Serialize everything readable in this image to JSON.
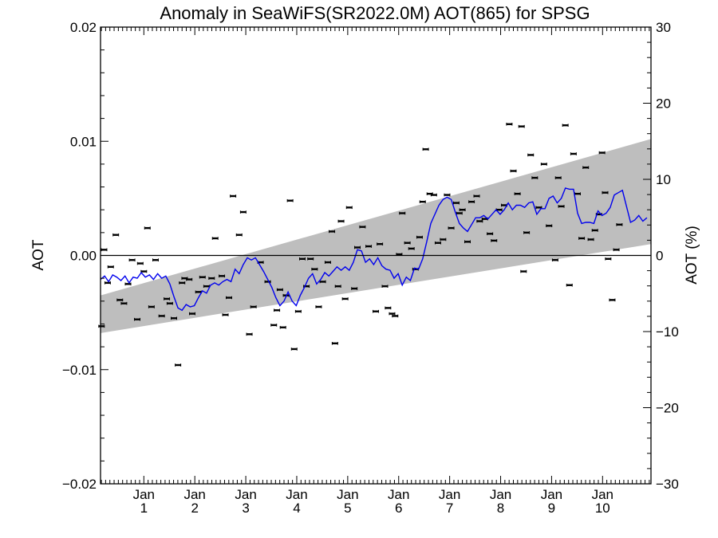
{
  "chart_data": {
    "type": "scatter",
    "title": "Anomaly in SeaWiFS(SR2022.0M) AOT(865) for SPSG",
    "ylabel": "AOT",
    "y2label": "AOT (%)",
    "xlabel": "",
    "xlim": [
      0.0,
      10.8
    ],
    "ylim": [
      -0.02,
      0.02
    ],
    "y2lim": [
      -30,
      30
    ],
    "grid": false,
    "legend": "none",
    "x_ticks": [
      {
        "pos": 0.85,
        "line1": "Jan",
        "line2": "1"
      },
      {
        "pos": 1.85,
        "line1": "Jan",
        "line2": "2"
      },
      {
        "pos": 2.85,
        "line1": "Jan",
        "line2": "3"
      },
      {
        "pos": 3.85,
        "line1": "Jan",
        "line2": "4"
      },
      {
        "pos": 4.85,
        "line1": "Jan",
        "line2": "5"
      },
      {
        "pos": 5.85,
        "line1": "Jan",
        "line2": "6"
      },
      {
        "pos": 6.85,
        "line1": "Jan",
        "line2": "7"
      },
      {
        "pos": 7.85,
        "line1": "Jan",
        "line2": "8"
      },
      {
        "pos": 8.85,
        "line1": "Jan",
        "line2": "9"
      },
      {
        "pos": 9.85,
        "line1": "Jan",
        "line2": "10"
      }
    ],
    "y_ticks": [
      {
        "value": -0.02,
        "label": "−0.02"
      },
      {
        "value": -0.01,
        "label": "−0.01"
      },
      {
        "value": 0.0,
        "label": "0.00"
      },
      {
        "value": 0.01,
        "label": "0.01"
      },
      {
        "value": 0.02,
        "label": "0.02"
      }
    ],
    "y2_ticks": [
      {
        "value": -30,
        "label": "−30"
      },
      {
        "value": -20,
        "label": "−20"
      },
      {
        "value": -10,
        "label": "−10"
      },
      {
        "value": 0,
        "label": "0"
      },
      {
        "value": 10,
        "label": "10"
      },
      {
        "value": 20,
        "label": "20"
      },
      {
        "value": 30,
        "label": "30"
      }
    ],
    "colors": {
      "band": "#bebebe",
      "line": "#0000ee",
      "points": "#000000",
      "zero_line": "#000000"
    },
    "band": {
      "upper": [
        [
          0.0,
          -0.0035
        ],
        [
          10.8,
          0.0102
        ]
      ],
      "lower": [
        [
          0.0,
          -0.0068
        ],
        [
          10.8,
          0.001
        ]
      ]
    },
    "smoothed_line": [
      [
        0.0,
        -0.0021
      ],
      [
        0.08,
        -0.0018
      ],
      [
        0.16,
        -0.0023
      ],
      [
        0.24,
        -0.0017
      ],
      [
        0.32,
        -0.0019
      ],
      [
        0.4,
        -0.0022
      ],
      [
        0.48,
        -0.0018
      ],
      [
        0.56,
        -0.0024
      ],
      [
        0.64,
        -0.0019
      ],
      [
        0.72,
        -0.002
      ],
      [
        0.8,
        -0.0015
      ],
      [
        0.88,
        -0.0019
      ],
      [
        0.96,
        -0.0017
      ],
      [
        1.04,
        -0.0021
      ],
      [
        1.12,
        -0.0016
      ],
      [
        1.2,
        -0.002
      ],
      [
        1.28,
        -0.0018
      ],
      [
        1.36,
        -0.0025
      ],
      [
        1.44,
        -0.0036
      ],
      [
        1.52,
        -0.0046
      ],
      [
        1.6,
        -0.0048
      ],
      [
        1.68,
        -0.0043
      ],
      [
        1.76,
        -0.0045
      ],
      [
        1.84,
        -0.0044
      ],
      [
        1.92,
        -0.0037
      ],
      [
        2.0,
        -0.0031
      ],
      [
        2.08,
        -0.0033
      ],
      [
        2.16,
        -0.0026
      ],
      [
        2.24,
        -0.0024
      ],
      [
        2.32,
        -0.0026
      ],
      [
        2.4,
        -0.0023
      ],
      [
        2.48,
        -0.0021
      ],
      [
        2.56,
        -0.0023
      ],
      [
        2.64,
        -0.0012
      ],
      [
        2.72,
        -0.0016
      ],
      [
        2.8,
        -0.0008
      ],
      [
        2.88,
        -0.0002
      ],
      [
        2.96,
        -0.0004
      ],
      [
        3.04,
        -0.0002
      ],
      [
        3.12,
        -0.0008
      ],
      [
        3.2,
        -0.0014
      ],
      [
        3.28,
        -0.0021
      ],
      [
        3.36,
        -0.0028
      ],
      [
        3.44,
        -0.0037
      ],
      [
        3.52,
        -0.0044
      ],
      [
        3.6,
        -0.004
      ],
      [
        3.68,
        -0.0032
      ],
      [
        3.76,
        -0.004
      ],
      [
        3.84,
        -0.0044
      ],
      [
        3.92,
        -0.0035
      ],
      [
        4.0,
        -0.0028
      ],
      [
        4.08,
        -0.002
      ],
      [
        4.16,
        -0.0016
      ],
      [
        4.24,
        -0.0025
      ],
      [
        4.32,
        -0.0021
      ],
      [
        4.4,
        -0.0015
      ],
      [
        4.48,
        -0.0018
      ],
      [
        4.56,
        -0.0014
      ],
      [
        4.64,
        -0.001
      ],
      [
        4.72,
        -0.0013
      ],
      [
        4.8,
        -0.001
      ],
      [
        4.88,
        -0.0013
      ],
      [
        4.96,
        -0.0006
      ],
      [
        5.04,
        0.0005
      ],
      [
        5.12,
        0.0004
      ],
      [
        5.2,
        -0.0006
      ],
      [
        5.28,
        -0.0003
      ],
      [
        5.36,
        -0.0008
      ],
      [
        5.44,
        -0.0002
      ],
      [
        5.52,
        -0.0009
      ],
      [
        5.6,
        -0.0012
      ],
      [
        5.68,
        -0.0013
      ],
      [
        5.76,
        -0.002
      ],
      [
        5.84,
        -0.0016
      ],
      [
        5.92,
        -0.0026
      ],
      [
        6.0,
        -0.0019
      ],
      [
        6.08,
        -0.0022
      ],
      [
        6.16,
        -0.0011
      ],
      [
        6.24,
        -0.0012
      ],
      [
        6.32,
        -0.0003
      ],
      [
        6.4,
        0.0012
      ],
      [
        6.48,
        0.0028
      ],
      [
        6.56,
        0.0036
      ],
      [
        6.64,
        0.0044
      ],
      [
        6.72,
        0.0049
      ],
      [
        6.8,
        0.0051
      ],
      [
        6.88,
        0.0049
      ],
      [
        6.96,
        0.0038
      ],
      [
        7.04,
        0.0028
      ],
      [
        7.12,
        0.0024
      ],
      [
        7.2,
        0.0021
      ],
      [
        7.28,
        0.0027
      ],
      [
        7.36,
        0.0033
      ],
      [
        7.44,
        0.0033
      ],
      [
        7.52,
        0.0035
      ],
      [
        7.6,
        0.0032
      ],
      [
        7.68,
        0.0036
      ],
      [
        7.76,
        0.004
      ],
      [
        7.84,
        0.0036
      ],
      [
        7.92,
        0.004
      ],
      [
        8.0,
        0.0046
      ],
      [
        8.08,
        0.004
      ],
      [
        8.16,
        0.0044
      ],
      [
        8.24,
        0.0044
      ],
      [
        8.32,
        0.0042
      ],
      [
        8.4,
        0.0046
      ],
      [
        8.48,
        0.0047
      ],
      [
        8.56,
        0.0036
      ],
      [
        8.64,
        0.0041
      ],
      [
        8.72,
        0.0041
      ],
      [
        8.8,
        0.005
      ],
      [
        8.88,
        0.0052
      ],
      [
        8.96,
        0.0046
      ],
      [
        9.04,
        0.005
      ],
      [
        9.12,
        0.0059
      ],
      [
        9.2,
        0.0058
      ],
      [
        9.28,
        0.0058
      ],
      [
        9.36,
        0.0037
      ],
      [
        9.44,
        0.0028
      ],
      [
        9.52,
        0.0029
      ],
      [
        9.6,
        0.0029
      ],
      [
        9.68,
        0.0028
      ],
      [
        9.76,
        0.0039
      ],
      [
        9.84,
        0.0035
      ],
      [
        9.92,
        0.0037
      ],
      [
        10.0,
        0.0042
      ],
      [
        10.08,
        0.0053
      ],
      [
        10.16,
        0.0055
      ],
      [
        10.24,
        0.0057
      ],
      [
        10.32,
        0.0043
      ],
      [
        10.4,
        0.0029
      ],
      [
        10.48,
        0.0031
      ],
      [
        10.56,
        0.0035
      ],
      [
        10.64,
        0.003
      ],
      [
        10.72,
        0.0033
      ]
    ],
    "monthly_points": [
      [
        0.02,
        -0.0062
      ],
      [
        0.07,
        0.0005
      ],
      [
        0.14,
        -0.0024
      ],
      [
        0.2,
        -0.001
      ],
      [
        0.3,
        0.0018
      ],
      [
        0.38,
        -0.0039
      ],
      [
        0.46,
        -0.0042
      ],
      [
        0.54,
        -0.0025
      ],
      [
        0.62,
        -0.0004
      ],
      [
        0.72,
        -0.0056
      ],
      [
        0.78,
        -0.0007
      ],
      [
        0.85,
        -0.0014
      ],
      [
        0.92,
        0.0024
      ],
      [
        1.0,
        -0.0045
      ],
      [
        1.08,
        -0.0004
      ],
      [
        1.2,
        -0.0053
      ],
      [
        1.3,
        -0.0038
      ],
      [
        1.36,
        -0.0042
      ],
      [
        1.44,
        -0.0055
      ],
      [
        1.52,
        -0.0096
      ],
      [
        1.6,
        -0.0024
      ],
      [
        1.65,
        -0.002
      ],
      [
        1.74,
        -0.0021
      ],
      [
        1.8,
        -0.0051
      ],
      [
        1.92,
        -0.0032
      ],
      [
        2.0,
        -0.0019
      ],
      [
        2.08,
        -0.0027
      ],
      [
        2.18,
        -0.002
      ],
      [
        2.25,
        0.0015
      ],
      [
        2.38,
        -0.0018
      ],
      [
        2.45,
        -0.0052
      ],
      [
        2.52,
        -0.0037
      ],
      [
        2.6,
        0.0052
      ],
      [
        2.72,
        0.0018
      ],
      [
        2.8,
        0.0038
      ],
      [
        2.92,
        -0.0069
      ],
      [
        3.0,
        -0.0045
      ],
      [
        3.14,
        -0.0006
      ],
      [
        3.28,
        -0.0023
      ],
      [
        3.4,
        -0.0061
      ],
      [
        3.46,
        -0.0048
      ],
      [
        3.52,
        -0.003
      ],
      [
        3.58,
        -0.0063
      ],
      [
        3.64,
        -0.0035
      ],
      [
        3.72,
        0.0048
      ],
      [
        3.8,
        -0.0082
      ],
      [
        3.88,
        -0.0049
      ],
      [
        3.96,
        -0.0003
      ],
      [
        4.04,
        -0.0027
      ],
      [
        4.12,
        -0.0003
      ],
      [
        4.2,
        -0.0012
      ],
      [
        4.28,
        -0.0045
      ],
      [
        4.36,
        -0.0023
      ],
      [
        4.46,
        -0.0006
      ],
      [
        4.54,
        0.0021
      ],
      [
        4.6,
        -0.0077
      ],
      [
        4.66,
        -0.0027
      ],
      [
        4.72,
        0.003
      ],
      [
        4.8,
        -0.0038
      ],
      [
        4.88,
        0.0042
      ],
      [
        4.98,
        -0.0029
      ],
      [
        5.04,
        0.0007
      ],
      [
        5.14,
        0.0025
      ],
      [
        5.26,
        0.0008
      ],
      [
        5.4,
        -0.0049
      ],
      [
        5.48,
        0.001
      ],
      [
        5.58,
        -0.0027
      ],
      [
        5.64,
        -0.0046
      ],
      [
        5.72,
        -0.0051
      ],
      [
        5.78,
        -0.0053
      ],
      [
        5.86,
        0.0001
      ],
      [
        5.92,
        0.0037
      ],
      [
        6.02,
        0.0011
      ],
      [
        6.1,
        0.0006
      ],
      [
        6.18,
        -0.0012
      ],
      [
        6.26,
        0.0016
      ],
      [
        6.32,
        0.0047
      ],
      [
        6.38,
        0.0093
      ],
      [
        6.46,
        0.0054
      ],
      [
        6.54,
        0.0053
      ],
      [
        6.62,
        0.0011
      ],
      [
        6.72,
        0.0014
      ],
      [
        6.8,
        0.0053
      ],
      [
        6.88,
        0.0024
      ],
      [
        6.98,
        0.0046
      ],
      [
        7.04,
        0.0037
      ],
      [
        7.1,
        0.004
      ],
      [
        7.2,
        0.0012
      ],
      [
        7.28,
        0.0047
      ],
      [
        7.38,
        0.0052
      ],
      [
        7.44,
        0.003
      ],
      [
        7.54,
        0.0032
      ],
      [
        7.64,
        0.0019
      ],
      [
        7.72,
        0.0013
      ],
      [
        7.82,
        0.004
      ],
      [
        7.92,
        0.0044
      ],
      [
        8.02,
        0.0115
      ],
      [
        8.1,
        0.0074
      ],
      [
        8.18,
        0.0054
      ],
      [
        8.26,
        0.0113
      ],
      [
        8.3,
        -0.0014
      ],
      [
        8.36,
        0.002
      ],
      [
        8.44,
        0.0088
      ],
      [
        8.52,
        0.0068
      ],
      [
        8.6,
        0.0042
      ],
      [
        8.7,
        0.008
      ],
      [
        8.8,
        0.0026
      ],
      [
        8.92,
        -0.0004
      ],
      [
        8.98,
        0.0068
      ],
      [
        9.04,
        0.0043
      ],
      [
        9.12,
        0.0114
      ],
      [
        9.2,
        -0.0026
      ],
      [
        9.28,
        0.0089
      ],
      [
        9.36,
        0.0054
      ],
      [
        9.44,
        0.0015
      ],
      [
        9.52,
        0.0077
      ],
      [
        9.62,
        0.0014
      ],
      [
        9.7,
        0.0022
      ],
      [
        9.78,
        0.0036
      ],
      [
        9.84,
        0.009
      ],
      [
        9.9,
        0.0055
      ],
      [
        9.96,
        -0.0003
      ],
      [
        10.04,
        -0.0039
      ],
      [
        10.12,
        0.0005
      ],
      [
        10.18,
        0.0027
      ]
    ]
  }
}
